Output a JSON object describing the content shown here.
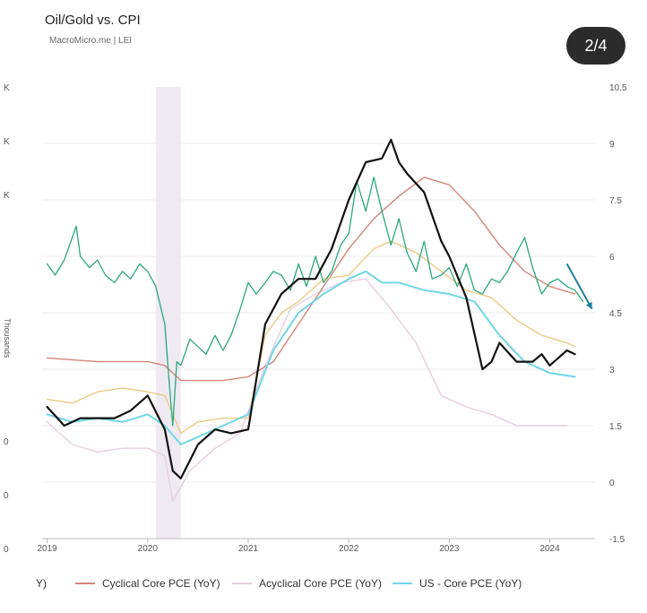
{
  "header": {
    "title": "Oil/Gold vs. CPI",
    "source": "MacroMicro.me | LEI"
  },
  "pager": {
    "label": "2/4"
  },
  "chart_data": {
    "type": "line",
    "ylabel_left": "Thousands",
    "left_tick_labels": [
      "K",
      "K",
      "K",
      "0",
      "0",
      "0"
    ],
    "right_axis": {
      "ticks": [
        "10.5",
        "9",
        "7.5",
        "6",
        "4.5",
        "3",
        "1.5",
        "0",
        "-1.5"
      ],
      "ylim": [
        -1.5,
        10.5
      ]
    },
    "x_ticks": [
      "2019",
      "2020",
      "2021",
      "2022",
      "2023",
      "2024"
    ],
    "xlim": [
      2018.95,
      2024.45
    ],
    "recession": {
      "start": 2020.08,
      "end": 2020.33
    },
    "colors": {
      "oilgold": "#2aa77f",
      "cyclical": "#d4857e",
      "acyclical": "#e6cfe0",
      "core": "#6fd6e6",
      "cpi": "#111111",
      "yellow": "#ebcb87",
      "arrow": "#1f7ea0"
    },
    "series": [
      {
        "key": "cpi",
        "x": [
          2019.0,
          2019.17,
          2019.33,
          2019.5,
          2019.67,
          2019.83,
          2020.0,
          2020.17,
          2020.25,
          2020.33,
          2020.5,
          2020.67,
          2020.83,
          2021.0,
          2021.17,
          2021.33,
          2021.5,
          2021.67,
          2021.83,
          2022.0,
          2022.17,
          2022.33,
          2022.42,
          2022.5,
          2022.58,
          2022.75,
          2022.92,
          2023.0,
          2023.17,
          2023.33,
          2023.42,
          2023.5,
          2023.67,
          2023.83,
          2023.92,
          2024.0,
          2024.17,
          2024.25
        ],
        "y": [
          2.0,
          1.5,
          1.7,
          1.7,
          1.7,
          1.9,
          2.3,
          1.4,
          0.3,
          0.1,
          1.0,
          1.4,
          1.3,
          1.4,
          4.2,
          5.0,
          5.4,
          5.4,
          6.2,
          7.5,
          8.5,
          8.6,
          9.1,
          8.5,
          8.2,
          7.7,
          6.4,
          6.0,
          4.9,
          3.0,
          3.2,
          3.7,
          3.2,
          3.2,
          3.4,
          3.1,
          3.5,
          3.4
        ]
      },
      {
        "key": "cyclical",
        "name": "Cyclical Core PCE (YoY)",
        "x": [
          2019.0,
          2019.5,
          2020.0,
          2020.17,
          2020.33,
          2020.5,
          2020.75,
          2021.0,
          2021.25,
          2021.5,
          2021.75,
          2022.0,
          2022.25,
          2022.5,
          2022.75,
          2023.0,
          2023.25,
          2023.5,
          2023.75,
          2024.0,
          2024.25
        ],
        "y": [
          3.3,
          3.2,
          3.2,
          3.1,
          2.7,
          2.7,
          2.7,
          2.8,
          3.2,
          4.2,
          5.2,
          6.2,
          7.0,
          7.6,
          8.1,
          7.9,
          7.2,
          6.3,
          5.6,
          5.2,
          5.0
        ]
      },
      {
        "key": "acyclical",
        "name": "Acyclical Core PCE (YoY)",
        "x": [
          2019.0,
          2019.25,
          2019.5,
          2019.75,
          2020.0,
          2020.17,
          2020.25,
          2020.42,
          2020.67,
          2020.92,
          2021.17,
          2021.42,
          2021.67,
          2021.92,
          2022.17,
          2022.42,
          2022.67,
          2022.92,
          2023.17,
          2023.42,
          2023.67,
          2023.92,
          2024.17
        ],
        "y": [
          1.6,
          1.0,
          0.8,
          0.9,
          0.9,
          0.7,
          -0.5,
          0.3,
          0.9,
          1.3,
          3.1,
          4.6,
          5.0,
          5.3,
          5.4,
          4.6,
          3.7,
          2.3,
          2.0,
          1.8,
          1.5,
          1.5,
          1.5
        ]
      },
      {
        "key": "core",
        "name": "US - Core PCE (YoY)",
        "x": [
          2019.0,
          2019.25,
          2019.5,
          2019.75,
          2020.0,
          2020.17,
          2020.33,
          2020.5,
          2020.75,
          2021.0,
          2021.25,
          2021.5,
          2021.75,
          2022.0,
          2022.17,
          2022.33,
          2022.5,
          2022.75,
          2023.0,
          2023.25,
          2023.5,
          2023.75,
          2024.0,
          2024.25
        ],
        "y": [
          1.8,
          1.6,
          1.7,
          1.6,
          1.8,
          1.5,
          1.0,
          1.2,
          1.5,
          1.8,
          3.5,
          4.5,
          5.0,
          5.4,
          5.6,
          5.3,
          5.3,
          5.1,
          5.0,
          4.8,
          3.9,
          3.2,
          2.9,
          2.8
        ]
      },
      {
        "key": "yellow",
        "x": [
          2019.0,
          2019.25,
          2019.5,
          2019.75,
          2020.0,
          2020.17,
          2020.33,
          2020.5,
          2020.75,
          2021.0,
          2021.17,
          2021.33,
          2021.5,
          2021.75,
          2022.0,
          2022.25,
          2022.42,
          2022.67,
          2022.92,
          2023.17,
          2023.42,
          2023.67,
          2023.92,
          2024.17,
          2024.25
        ],
        "y": [
          2.2,
          2.1,
          2.4,
          2.5,
          2.4,
          2.3,
          1.3,
          1.6,
          1.7,
          1.7,
          3.9,
          4.5,
          4.8,
          5.4,
          5.5,
          6.2,
          6.4,
          6.1,
          5.6,
          5.1,
          4.9,
          4.3,
          3.9,
          3.7,
          3.6
        ]
      },
      {
        "key": "oilgold",
        "x": [
          2019.0,
          2019.08,
          2019.17,
          2019.29,
          2019.33,
          2019.42,
          2019.5,
          2019.58,
          2019.67,
          2019.75,
          2019.83,
          2019.92,
          2020.0,
          2020.08,
          2020.17,
          2020.21,
          2020.25,
          2020.29,
          2020.33,
          2020.42,
          2020.5,
          2020.58,
          2020.67,
          2020.75,
          2020.83,
          2020.92,
          2021.0,
          2021.08,
          2021.17,
          2021.25,
          2021.33,
          2021.42,
          2021.5,
          2021.58,
          2021.67,
          2021.75,
          2021.83,
          2021.92,
          2022.0,
          2022.08,
          2022.17,
          2022.25,
          2022.33,
          2022.42,
          2022.5,
          2022.58,
          2022.67,
          2022.75,
          2022.83,
          2022.92,
          2023.0,
          2023.08,
          2023.17,
          2023.25,
          2023.33,
          2023.42,
          2023.5,
          2023.58,
          2023.67,
          2023.75,
          2023.83,
          2023.92,
          2024.0,
          2024.08,
          2024.17,
          2024.25,
          2024.33
        ],
        "y": [
          5.8,
          5.5,
          5.9,
          6.8,
          6.0,
          5.7,
          5.9,
          5.5,
          5.3,
          5.6,
          5.4,
          5.8,
          5.6,
          5.2,
          4.2,
          2.8,
          1.5,
          3.2,
          3.1,
          3.8,
          3.6,
          3.4,
          3.9,
          3.5,
          3.9,
          4.6,
          5.3,
          5.0,
          5.3,
          5.6,
          5.5,
          5.1,
          5.8,
          5.2,
          6.0,
          5.3,
          5.6,
          6.3,
          6.6,
          8.0,
          7.2,
          8.1,
          7.2,
          6.3,
          7.0,
          6.1,
          5.6,
          6.4,
          5.4,
          5.5,
          5.7,
          5.2,
          5.8,
          5.1,
          5.0,
          5.4,
          5.3,
          5.6,
          6.1,
          6.5,
          5.7,
          5.0,
          5.3,
          5.4,
          5.2,
          5.1,
          4.8
        ]
      }
    ]
  }
}
